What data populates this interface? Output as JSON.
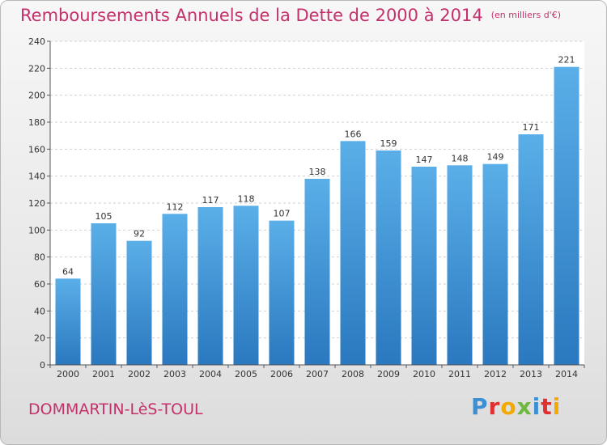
{
  "chart_data": {
    "type": "bar",
    "title": "Remboursements Annuels de la Dette de 2000 à 2014",
    "unit_note": "(en milliers d'€)",
    "categories": [
      "2000",
      "2001",
      "2002",
      "2003",
      "2004",
      "2005",
      "2006",
      "2007",
      "2008",
      "2009",
      "2010",
      "2011",
      "2012",
      "2013",
      "2014"
    ],
    "values": [
      64,
      105,
      92,
      112,
      117,
      118,
      107,
      138,
      166,
      159,
      147,
      148,
      149,
      171,
      221
    ],
    "ylim": [
      0,
      240
    ],
    "yticks": [
      0,
      20,
      40,
      60,
      80,
      100,
      120,
      140,
      160,
      180,
      200,
      220,
      240
    ],
    "grid": true,
    "bar_color": "#3d8fd6"
  },
  "footer": {
    "commune": "DOMMARTIN-LèS-TOUL",
    "logo": "Proxiti"
  },
  "colors": {
    "title": "#c4306b",
    "logo_letters": [
      "#3b8fd4",
      "#e0302f",
      "#f2a900",
      "#6fb83f",
      "#3b8fd4",
      "#e0302f",
      "#f2a900"
    ]
  }
}
